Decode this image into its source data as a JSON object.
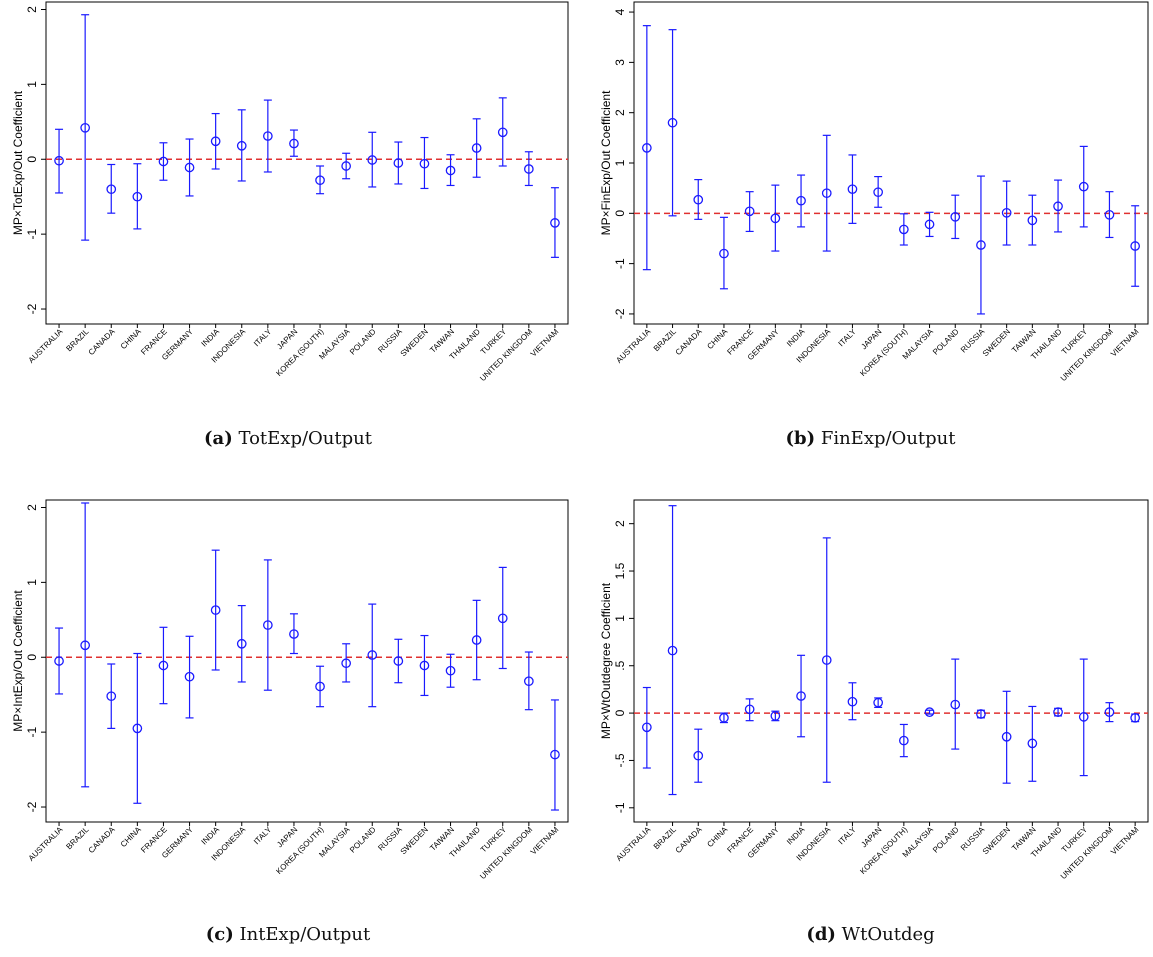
{
  "colors": {
    "series": "#1a1aff",
    "zero_line": "#e03030",
    "axis": "#000000"
  },
  "chart_data": [
    {
      "type": "scatter",
      "caption_label": "(a)",
      "caption_text": "TotExp/Output",
      "ylabel": "MP×TotExp/Out Coefficient",
      "ylim": [
        -2.2,
        2.1
      ],
      "yticks": [
        -2,
        -1,
        0,
        1,
        2
      ],
      "ytick_labels": [
        "-2",
        "-1",
        "0",
        "1",
        "2"
      ],
      "reference_line": 0,
      "categories": [
        "AUSTRALIA",
        "BRAZIL",
        "CANADA",
        "CHINA",
        "FRANCE",
        "GERMANY",
        "INDIA",
        "INDONESIA",
        "ITALY",
        "JAPAN",
        "KOREA (SOUTH)",
        "MALAYSIA",
        "POLAND",
        "RUSSIA",
        "SWEDEN",
        "TAIWAN",
        "THAILAND",
        "TURKEY",
        "UNITED KINGDOM",
        "VIETNAM"
      ],
      "estimate": [
        -0.02,
        0.42,
        -0.4,
        -0.5,
        -0.03,
        -0.11,
        0.24,
        0.18,
        0.31,
        0.21,
        -0.28,
        -0.09,
        -0.01,
        -0.05,
        -0.06,
        -0.15,
        0.15,
        0.36,
        -0.13,
        -0.85
      ],
      "ci_low": [
        -0.45,
        -1.08,
        -0.72,
        -0.93,
        -0.28,
        -0.49,
        -0.13,
        -0.29,
        -0.17,
        0.04,
        -0.46,
        -0.26,
        -0.37,
        -0.33,
        -0.39,
        -0.35,
        -0.24,
        -0.09,
        -0.35,
        -1.31
      ],
      "ci_high": [
        0.4,
        1.93,
        -0.07,
        -0.06,
        0.22,
        0.27,
        0.61,
        0.66,
        0.79,
        0.39,
        -0.09,
        0.08,
        0.36,
        0.23,
        0.29,
        0.06,
        0.54,
        0.82,
        0.1,
        -0.38
      ]
    },
    {
      "type": "scatter",
      "caption_label": "(b)",
      "caption_text": "FinExp/Output",
      "ylabel": "MP×FinExp/Out Coefficient",
      "ylim": [
        -2.2,
        4.2
      ],
      "yticks": [
        -2,
        -1,
        0,
        1,
        2,
        3,
        4
      ],
      "ytick_labels": [
        "-2",
        "-1",
        "0",
        "1",
        "2",
        "3",
        "4"
      ],
      "reference_line": 0,
      "categories": [
        "AUSTRALIA",
        "BRAZIL",
        "CANADA",
        "CHINA",
        "FRANCE",
        "GERMANY",
        "INDIA",
        "INDONESIA",
        "ITALY",
        "JAPAN",
        "KOREA (SOUTH)",
        "MALAYSIA",
        "POLAND",
        "RUSSIA",
        "SWEDEN",
        "TAIWAN",
        "THAILAND",
        "TURKEY",
        "UNITED KINGDOM",
        "VIETNAM"
      ],
      "estimate": [
        1.3,
        1.8,
        0.27,
        -0.8,
        0.04,
        -0.1,
        0.25,
        0.4,
        0.48,
        0.42,
        -0.32,
        -0.22,
        -0.07,
        -0.63,
        0.01,
        -0.14,
        0.14,
        0.53,
        -0.03,
        -0.65
      ],
      "ci_low": [
        -1.12,
        -0.05,
        -0.12,
        -1.5,
        -0.36,
        -0.75,
        -0.27,
        -0.75,
        -0.2,
        0.12,
        -0.63,
        -0.46,
        -0.5,
        -2.0,
        -0.63,
        -0.63,
        -0.37,
        -0.27,
        -0.48,
        -1.45
      ],
      "ci_high": [
        3.73,
        3.65,
        0.67,
        -0.08,
        0.43,
        0.56,
        0.76,
        1.55,
        1.16,
        0.73,
        -0.01,
        0.02,
        0.36,
        0.74,
        0.64,
        0.36,
        0.66,
        1.33,
        0.43,
        0.15
      ]
    },
    {
      "type": "scatter",
      "caption_label": "(c)",
      "caption_text": "IntExp/Output",
      "ylabel": "MP×IntExp/Out Coefficient",
      "ylim": [
        -2.2,
        2.1
      ],
      "yticks": [
        -2,
        -1,
        0,
        1,
        2
      ],
      "ytick_labels": [
        "-2",
        "-1",
        "0",
        "1",
        "2"
      ],
      "reference_line": 0,
      "categories": [
        "AUSTRALIA",
        "BRAZIL",
        "CANADA",
        "CHINA",
        "FRANCE",
        "GERMANY",
        "INDIA",
        "INDONESIA",
        "ITALY",
        "JAPAN",
        "KOREA (SOUTH)",
        "MALAYSIA",
        "POLAND",
        "RUSSIA",
        "SWEDEN",
        "TAIWAN",
        "THAILAND",
        "TURKEY",
        "UNITED KINGDOM",
        "VIETNAM"
      ],
      "estimate": [
        -0.05,
        0.16,
        -0.52,
        -0.95,
        -0.11,
        -0.26,
        0.63,
        0.18,
        0.43,
        0.31,
        -0.39,
        -0.08,
        0.03,
        -0.05,
        -0.11,
        -0.18,
        0.23,
        0.52,
        -0.32,
        -1.3
      ],
      "ci_low": [
        -0.49,
        -1.73,
        -0.95,
        -1.95,
        -0.62,
        -0.81,
        -0.17,
        -0.33,
        -0.44,
        0.05,
        -0.66,
        -0.33,
        -0.66,
        -0.34,
        -0.51,
        -0.4,
        -0.3,
        -0.15,
        -0.7,
        -2.04
      ],
      "ci_high": [
        0.39,
        2.06,
        -0.09,
        0.05,
        0.4,
        0.28,
        1.43,
        0.69,
        1.3,
        0.58,
        -0.12,
        0.18,
        0.71,
        0.24,
        0.29,
        0.04,
        0.76,
        1.2,
        0.07,
        -0.57
      ]
    },
    {
      "type": "scatter",
      "caption_label": "(d)",
      "caption_text": "WtOutdeg",
      "ylabel": "MP×WtOutdegree Coefficient",
      "ylim": [
        -1.15,
        2.25
      ],
      "yticks": [
        -1,
        -0.5,
        0,
        0.5,
        1,
        1.5,
        2
      ],
      "ytick_labels": [
        "-1",
        "-.5",
        "0",
        ".5",
        "1",
        "1.5",
        "2"
      ],
      "reference_line": 0,
      "categories": [
        "AUSTRALIA",
        "BRAZIL",
        "CANADA",
        "CHINA",
        "FRANCE",
        "GERMANY",
        "INDIA",
        "INDONESIA",
        "ITALY",
        "JAPAN",
        "KOREA (SOUTH)",
        "MALAYSIA",
        "POLAND",
        "RUSSIA",
        "SWEDEN",
        "TAIWAN",
        "THAILAND",
        "TURKEY",
        "UNITED KINGDOM",
        "VIETNAM"
      ],
      "estimate": [
        -0.15,
        0.66,
        -0.45,
        -0.05,
        0.04,
        -0.03,
        0.18,
        0.56,
        0.12,
        0.11,
        -0.29,
        0.01,
        0.09,
        -0.01,
        -0.25,
        -0.32,
        0.01,
        -0.04,
        0.01,
        -0.05
      ],
      "ci_low": [
        -0.58,
        -0.86,
        -0.73,
        -0.1,
        -0.08,
        -0.08,
        -0.25,
        -0.73,
        -0.07,
        0.06,
        -0.46,
        -0.01,
        -0.38,
        -0.05,
        -0.74,
        -0.72,
        -0.03,
        -0.66,
        -0.09,
        -0.09
      ],
      "ci_high": [
        0.27,
        2.19,
        -0.17,
        0.0,
        0.15,
        0.02,
        0.61,
        1.85,
        0.32,
        0.16,
        -0.12,
        0.03,
        0.57,
        0.03,
        0.23,
        0.07,
        0.05,
        0.57,
        0.11,
        -0.01
      ]
    }
  ]
}
